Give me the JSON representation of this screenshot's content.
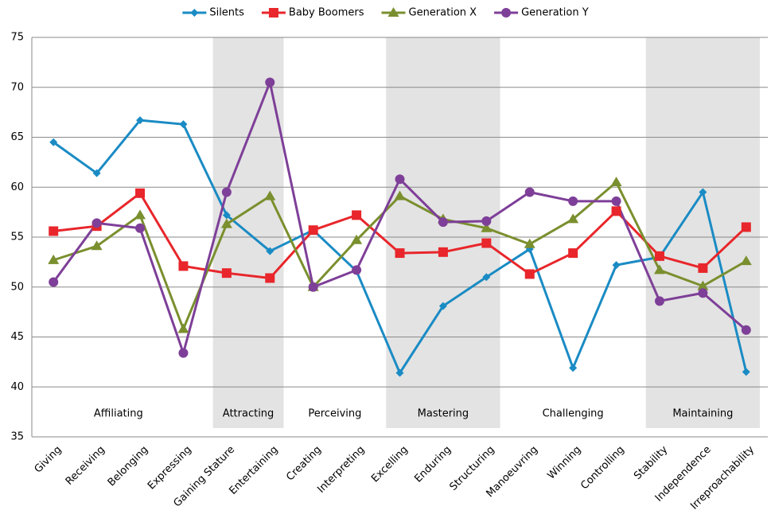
{
  "chart_data": {
    "type": "line",
    "categories": [
      "Giving",
      "Receiving",
      "Belonging",
      "Expressing",
      "Gaining Stature",
      "Entertaining",
      "Creating",
      "Interpreting",
      "Excelling",
      "Enduring",
      "Structuring",
      "Manoeuvring",
      "Winning",
      "Controlling",
      "Stability",
      "Independence",
      "Irreproachability"
    ],
    "series": [
      {
        "name": "Silents",
        "color": "#1a8bc4",
        "marker": "diamond",
        "values": [
          64.5,
          61.4,
          66.7,
          66.3,
          57.2,
          53.6,
          55.7,
          51.6,
          41.4,
          48.1,
          51.0,
          53.8,
          41.9,
          52.2,
          53.0,
          59.5,
          41.5
        ]
      },
      {
        "name": "Baby Boomers",
        "color": "#e8262b",
        "marker": "square",
        "values": [
          55.6,
          56.1,
          59.4,
          52.1,
          51.4,
          50.9,
          55.7,
          57.2,
          53.4,
          53.5,
          54.4,
          51.3,
          53.4,
          57.6,
          53.1,
          51.9,
          56.0
        ]
      },
      {
        "name": "Generation X",
        "color": "#7a8f2e",
        "marker": "triangle",
        "values": [
          52.7,
          54.1,
          57.2,
          45.8,
          56.3,
          59.1,
          50.0,
          54.7,
          59.1,
          56.8,
          55.9,
          54.3,
          56.8,
          60.5,
          51.7,
          50.1,
          52.6
        ]
      },
      {
        "name": "Generation Y",
        "color": "#7e3f98",
        "marker": "circle",
        "values": [
          50.5,
          56.4,
          55.9,
          43.4,
          59.5,
          70.5,
          50.0,
          51.7,
          60.8,
          56.5,
          56.6,
          59.5,
          58.6,
          58.6,
          48.6,
          49.4,
          45.7
        ]
      }
    ],
    "groups": [
      {
        "label": "Affiliating",
        "span": 4,
        "shaded": false
      },
      {
        "label": "Attracting",
        "span": 2,
        "shaded": true
      },
      {
        "label": "Perceiving",
        "span": 2,
        "shaded": false
      },
      {
        "label": "Mastering",
        "span": 3,
        "shaded": true
      },
      {
        "label": "Challenging",
        "span": 3,
        "shaded": false
      },
      {
        "label": "Maintaining",
        "span": 3,
        "shaded": true
      }
    ],
    "ylim": [
      35,
      75
    ],
    "yticks": [
      35,
      40,
      45,
      50,
      55,
      60,
      65,
      70,
      75
    ],
    "grid": true,
    "legend": "top"
  }
}
